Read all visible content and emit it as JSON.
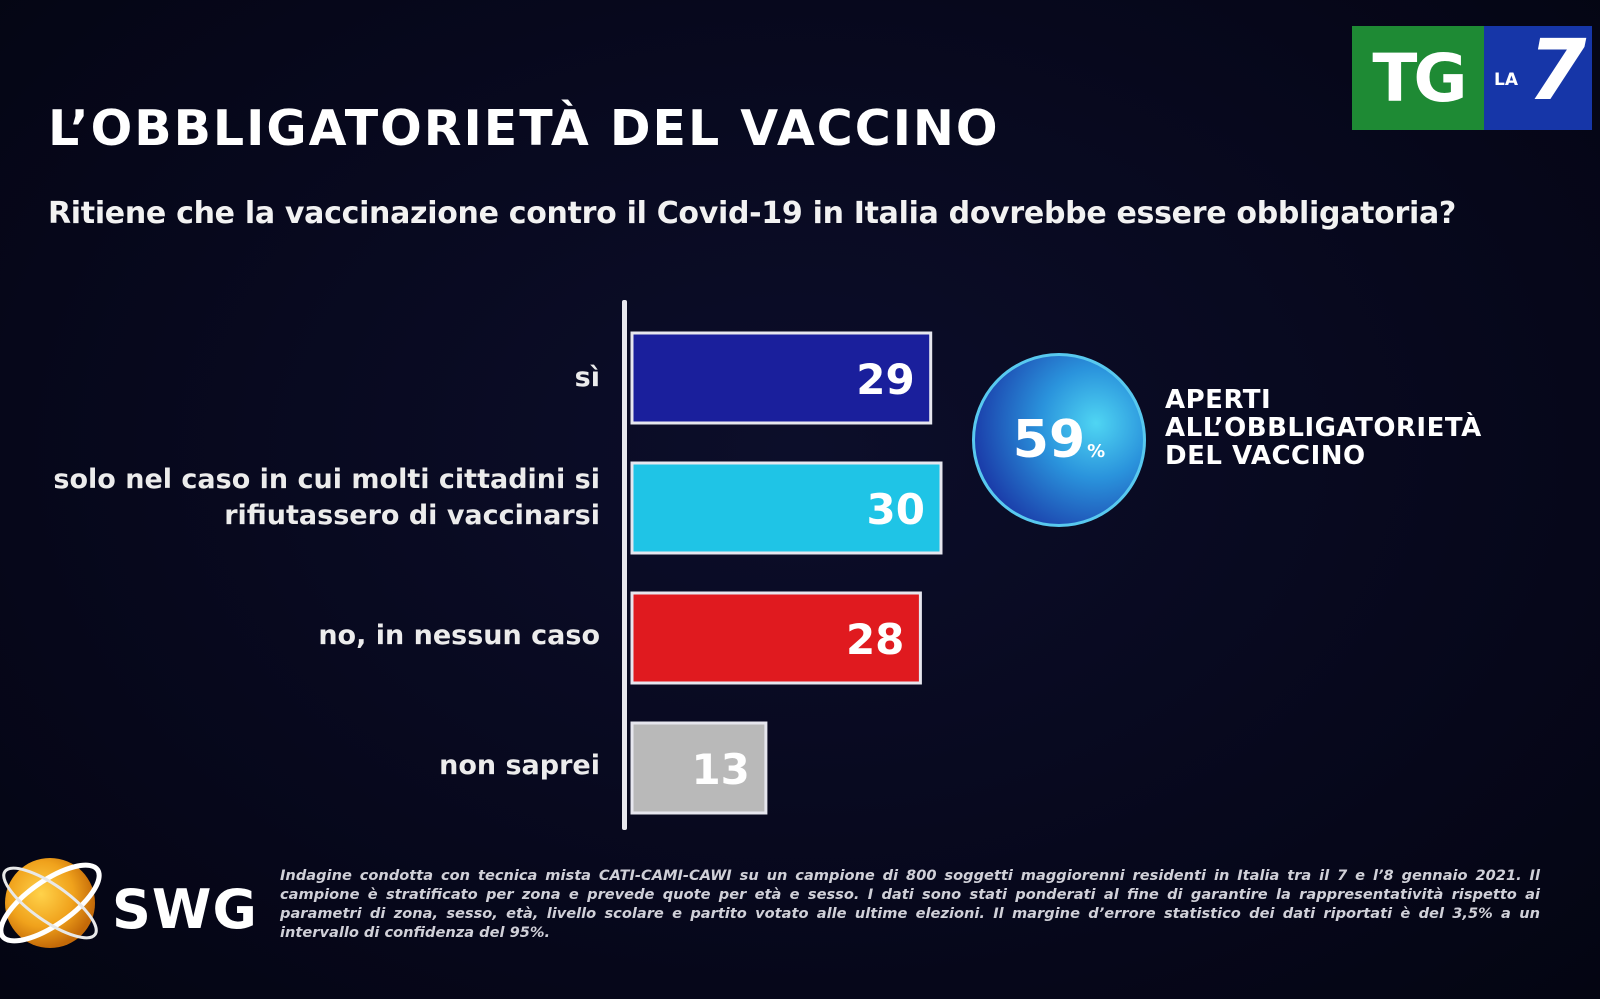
{
  "header": {
    "title": "L’OBBLIGATORIETÀ DEL VACCINO",
    "subtitle": "Ritiene che la vaccinazione contro il Covid-19 in Italia dovrebbe essere obbligatoria?"
  },
  "logo": {
    "tg": "TG",
    "la": "LA",
    "seven": "7"
  },
  "chart_data": {
    "type": "bar",
    "orientation": "horizontal",
    "categories": [
      "sì",
      "solo nel caso in cui molti cittadini si\nrifiutassero di vaccinarsi",
      "no, in nessun caso",
      "non saprei"
    ],
    "values": [
      29,
      30,
      28,
      13
    ],
    "colors": [
      "#1a1f9c",
      "#1fc4e6",
      "#e01a1f",
      "#b9b9b9"
    ],
    "data_labels": [
      "29",
      "30",
      "28",
      "13"
    ],
    "title": "",
    "xlabel": "",
    "ylabel": "",
    "grid": false,
    "legend": "none"
  },
  "badge": {
    "value": "59",
    "unit": "%",
    "caption": [
      "APERTI",
      "ALL’OBBLIGATORIETÀ",
      "DEL VACCINO"
    ]
  },
  "footer": {
    "brand": "SWG",
    "note": "Indagine condotta con tecnica mista CATI-CAMI-CAWI su un campione di 800 soggetti maggiorenni residenti in Italia tra il 7 e l’8 gennaio 2021. Il campione è stratificato per zona e prevede quote per età e sesso. I dati sono stati ponderati al fine di garantire la rappresentatività rispetto ai parametri di zona, sesso, età, livello scolare e partito votato alle ultime elezioni. Il margine d’errore statistico dei dati riportati è del 3,5% a un intervallo di confidenza del 95%."
  }
}
